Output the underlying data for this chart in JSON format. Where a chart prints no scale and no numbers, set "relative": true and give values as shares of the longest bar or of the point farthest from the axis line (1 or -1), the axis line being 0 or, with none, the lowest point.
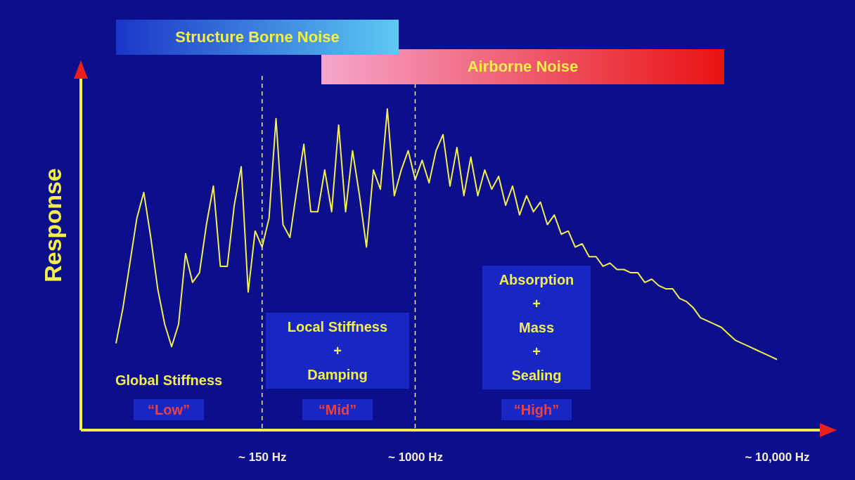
{
  "chart_data": {
    "type": "line",
    "ylabel": "Response",
    "relative": true,
    "categories": [
      null,
      null,
      null,
      null,
      null,
      null,
      null,
      null,
      null,
      null,
      null,
      null,
      null,
      null,
      null,
      null,
      null,
      null,
      null,
      null,
      null,
      "~ 150 Hz",
      null,
      null,
      null,
      null,
      null,
      null,
      null,
      null,
      null,
      null,
      null,
      null,
      null,
      null,
      null,
      null,
      null,
      null,
      null,
      null,
      null,
      "~ 1000 Hz",
      null,
      null,
      null,
      null,
      null,
      null,
      null,
      null,
      null,
      null,
      null,
      null,
      null,
      null,
      null,
      null,
      null,
      null,
      null,
      null,
      null,
      null,
      null,
      null,
      null,
      null,
      null,
      null,
      null,
      null,
      null,
      null,
      null,
      null,
      null,
      null,
      null,
      null,
      null,
      null,
      null,
      null,
      null,
      null,
      null,
      null,
      null,
      null,
      null,
      null,
      null,
      "~ 10,000 Hz"
    ],
    "series": [
      {
        "color": "#f2ee4e",
        "line_style": "solid",
        "values": [
          0.27,
          0.38,
          0.52,
          0.66,
          0.74,
          0.6,
          0.44,
          0.33,
          0.26,
          0.33,
          0.55,
          0.46,
          0.49,
          0.64,
          0.76,
          0.51,
          0.51,
          0.7,
          0.82,
          0.43,
          0.62,
          0.57,
          0.66,
          0.97,
          0.64,
          0.6,
          0.75,
          0.89,
          0.68,
          0.68,
          0.81,
          0.68,
          0.95,
          0.68,
          0.87,
          0.73,
          0.57,
          0.81,
          0.75,
          1,
          0.73,
          0.81,
          0.87,
          0.78,
          0.84,
          0.77,
          0.87,
          0.92,
          0.76,
          0.88,
          0.73,
          0.85,
          0.73,
          0.81,
          0.75,
          0.79,
          0.7,
          0.76,
          0.67,
          0.73,
          0.68,
          0.71,
          0.64,
          0.67,
          0.61,
          0.62,
          0.57,
          0.58,
          0.54,
          0.54,
          0.51,
          0.52,
          0.5,
          0.5,
          0.49,
          0.49,
          0.46,
          0.47,
          0.45,
          0.44,
          0.44,
          0.41,
          0.4,
          0.38,
          0.35,
          0.34,
          0.33,
          0.32,
          0.3,
          0.28,
          0.27,
          0.26,
          0.25,
          0.24,
          0.23,
          0.22
        ]
      }
    ],
    "ref_lines": [
      {
        "axis": "x",
        "value": "~ 150 Hz",
        "color": "#f0e8b0",
        "line_style": "dashed"
      },
      {
        "axis": "x",
        "value": "~ 1000 Hz",
        "color": "#f0e8b0",
        "line_style": "dashed"
      }
    ],
    "annotations": [
      "Structure Borne Noise",
      "Airborne Noise",
      "Global Stiffness",
      "“Low”",
      "Local Stiffness\n+\nDamping",
      "“Mid”",
      "Absorption\n+\nMass\n+\nSealing",
      "“High”"
    ],
    "grid": false
  }
}
